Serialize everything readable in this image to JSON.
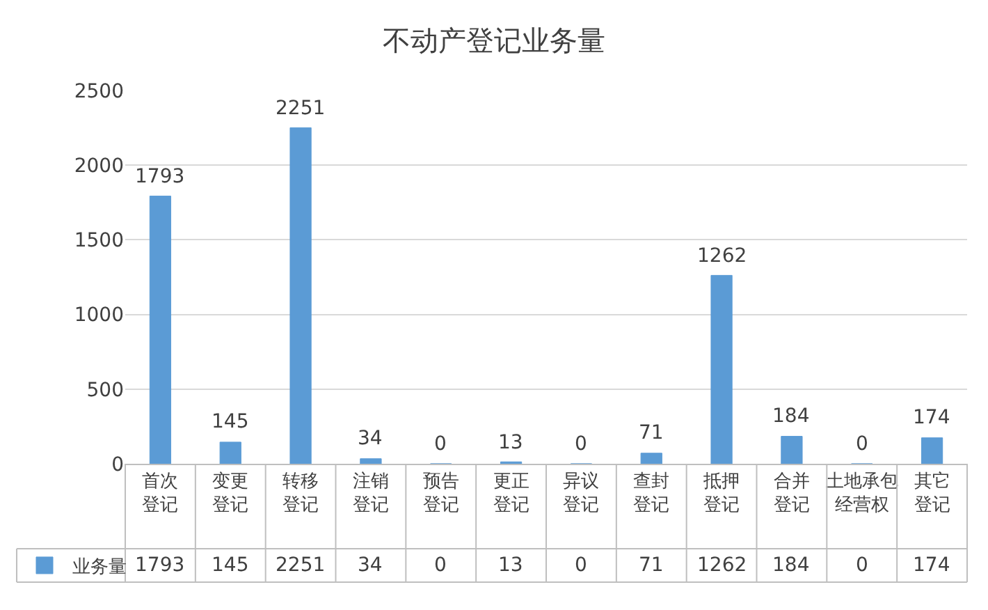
{
  "chart_data": {
    "type": "bar",
    "title": "不动产登记业务量",
    "categories": [
      "首次登记",
      "变更登记",
      "转移登记",
      "注销登记",
      "预告登记",
      "更正登记",
      "异议登记",
      "查封登记",
      "抵押登记",
      "合并登记",
      "土地承包经营权",
      "其它登记"
    ],
    "series": [
      {
        "name": "业务量",
        "color": "#5b9bd5",
        "values": [
          1793,
          145,
          2251,
          34,
          0,
          13,
          0,
          71,
          1262,
          184,
          0,
          174
        ],
        "value_labels": [
          "1793",
          "145",
          "2251",
          "34",
          "0",
          "13",
          "0",
          "71",
          "1262",
          "184",
          "0",
          "174"
        ]
      }
    ],
    "ylim": [
      0,
      2500
    ],
    "yticks": [
      0,
      500,
      1000,
      1500,
      2000,
      2500
    ],
    "grid": "y",
    "legend": "bottom",
    "data_labels": true
  }
}
